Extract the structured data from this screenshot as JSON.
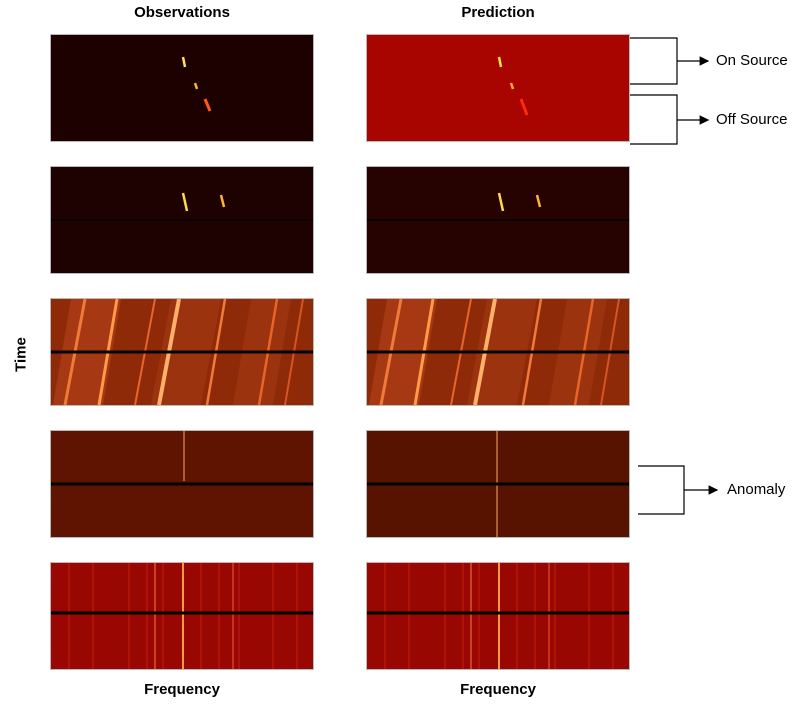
{
  "columns": {
    "observations_title": "Observations",
    "prediction_title": "Prediction"
  },
  "axes": {
    "y_label": "Time",
    "x_label_left": "Frequency",
    "x_label_right": "Frequency"
  },
  "annotations": {
    "on_source": "On Source",
    "off_source": "Off Source",
    "anomaly": "Anomaly"
  },
  "colors": {
    "dark_background": "#1a0000",
    "red_background": "#a80400",
    "orange_background": "#8f2a08",
    "brown_background": "#5a1300",
    "crimson_background": "#990703",
    "signal_yellow": "#ffd94a",
    "signal_orange": "#ff7a1a",
    "cadence_line": "#000000"
  }
}
